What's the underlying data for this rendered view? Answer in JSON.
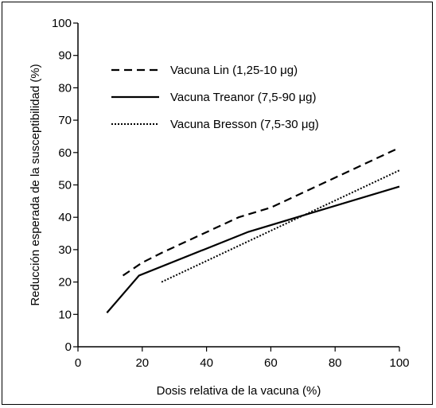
{
  "chart_data": {
    "type": "line",
    "title": "",
    "xlabel": "Dosis relativa de la vacuna (%)",
    "ylabel": "Reducción esperada de la susceptibilidad (%)",
    "xlim": [
      0,
      100
    ],
    "ylim": [
      0,
      100
    ],
    "xticks": [
      0,
      20,
      40,
      60,
      80,
      100
    ],
    "yticks": [
      0,
      10,
      20,
      30,
      40,
      50,
      60,
      70,
      80,
      90,
      100
    ],
    "grid": false,
    "legend_position": "upper-left",
    "series": [
      {
        "name": "Vacuna Lin (1,25-10 μg)",
        "style": "dashed",
        "color": "#000000",
        "x": [
          14,
          20,
          26,
          50,
          60,
          100
        ],
        "y": [
          22,
          26,
          29,
          40,
          43,
          61.5
        ]
      },
      {
        "name": "Vacuna Treanor (7,5-90 μg)",
        "style": "solid",
        "color": "#000000",
        "x": [
          9,
          19,
          53,
          100
        ],
        "y": [
          10.5,
          22,
          35.5,
          49.5
        ]
      },
      {
        "name": "Vacuna Bresson (7,5-30 μg)",
        "style": "dotted",
        "color": "#000000",
        "x": [
          26,
          100
        ],
        "y": [
          20,
          54.5
        ]
      }
    ]
  }
}
